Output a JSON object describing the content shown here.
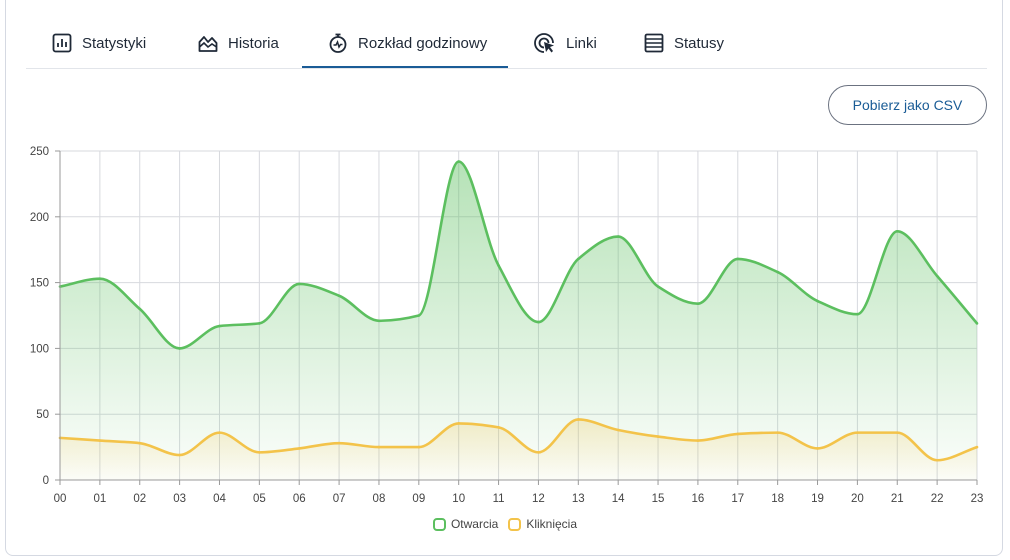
{
  "tabs": [
    {
      "label": "Statystyki",
      "icon": "bar-chart-icon"
    },
    {
      "label": "Historia",
      "icon": "area-chart-icon"
    },
    {
      "label": "Rozkład godzinowy",
      "icon": "stopwatch-icon"
    },
    {
      "label": "Linki",
      "icon": "cursor-click-icon"
    },
    {
      "label": "Statusy",
      "icon": "list-icon"
    }
  ],
  "active_tab": "Rozkład godzinowy",
  "csv_button_label": "Pobierz jako CSV",
  "colors": {
    "accent": "#1a5c96",
    "opens": "#5cbf5f",
    "clicks": "#f3c34a"
  },
  "chart_data": {
    "type": "area",
    "x": [
      "00",
      "01",
      "02",
      "03",
      "04",
      "05",
      "06",
      "07",
      "08",
      "09",
      "10",
      "11",
      "12",
      "13",
      "14",
      "15",
      "16",
      "17",
      "18",
      "19",
      "20",
      "21",
      "22",
      "23"
    ],
    "ylim": [
      0,
      250
    ],
    "yticks": [
      0,
      50,
      100,
      150,
      200,
      250
    ],
    "grid": true,
    "legend_position": "bottom",
    "series": [
      {
        "name": "Otwarcia",
        "values": [
          147,
          153,
          130,
          100,
          117,
          119,
          149,
          140,
          121,
          125,
          242,
          163,
          120,
          168,
          185,
          147,
          134,
          168,
          158,
          136,
          126,
          189,
          155,
          119
        ]
      },
      {
        "name": "Kliknięcia",
        "values": [
          32,
          30,
          28,
          19,
          36,
          21,
          24,
          28,
          25,
          25,
          43,
          40,
          21,
          46,
          38,
          33,
          30,
          35,
          36,
          24,
          36,
          36,
          15,
          25
        ]
      }
    ]
  }
}
